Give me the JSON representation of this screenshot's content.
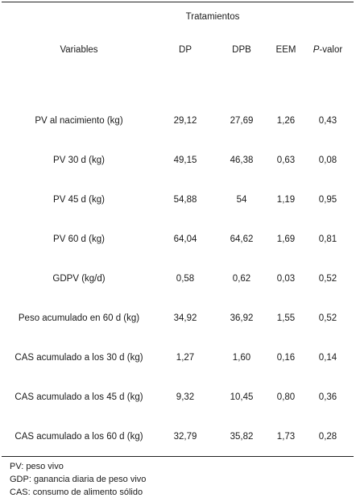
{
  "table": {
    "group_header": "Tratamientos",
    "columns": {
      "variables": "Variables",
      "dp": "DP",
      "dpb": "DPB",
      "eem": "EEM",
      "p_prefix": "P",
      "p_suffix": "-valor"
    },
    "rows": [
      {
        "label": "PV al nacimiento (kg)",
        "dp": "29,12",
        "dpb": "27,69",
        "eem": "1,26",
        "p": "0,43"
      },
      {
        "label": "PV 30 d (kg)",
        "dp": "49,15",
        "dpb": "46,38",
        "eem": "0,63",
        "p": "0,08"
      },
      {
        "label": "PV 45 d (kg)",
        "dp": "54,88",
        "dpb": "54",
        "eem": "1,19",
        "p": "0,95"
      },
      {
        "label": "PV 60 d (kg)",
        "dp": "64,04",
        "dpb": "64,62",
        "eem": "1,69",
        "p": "0,81"
      },
      {
        "label": "GDPV (kg/d)",
        "dp": "0,58",
        "dpb": "0,62",
        "eem": "0,03",
        "p": "0,52"
      },
      {
        "label": "Peso acumulado en 60 d (kg)",
        "dp": "34,92",
        "dpb": "36,92",
        "eem": "1,55",
        "p": "0,52"
      },
      {
        "label": "CAS acumulado a los 30 d (kg)",
        "dp": "1,27",
        "dpb": "1,60",
        "eem": "0,16",
        "p": "0,14"
      },
      {
        "label": "CAS acumulado a los 45 d (kg)",
        "dp": "9,32",
        "dpb": "10,45",
        "eem": "0,80",
        "p": "0,36"
      },
      {
        "label": "CAS acumulado a los 60 d (kg)",
        "dp": "32,79",
        "dpb": "35,82",
        "eem": "1,73",
        "p": "0,28"
      }
    ]
  },
  "footnotes": [
    "PV: peso vivo",
    "GDP: ganancia diaria de peso vivo",
    "CAS: consumo de alimento sólido"
  ]
}
